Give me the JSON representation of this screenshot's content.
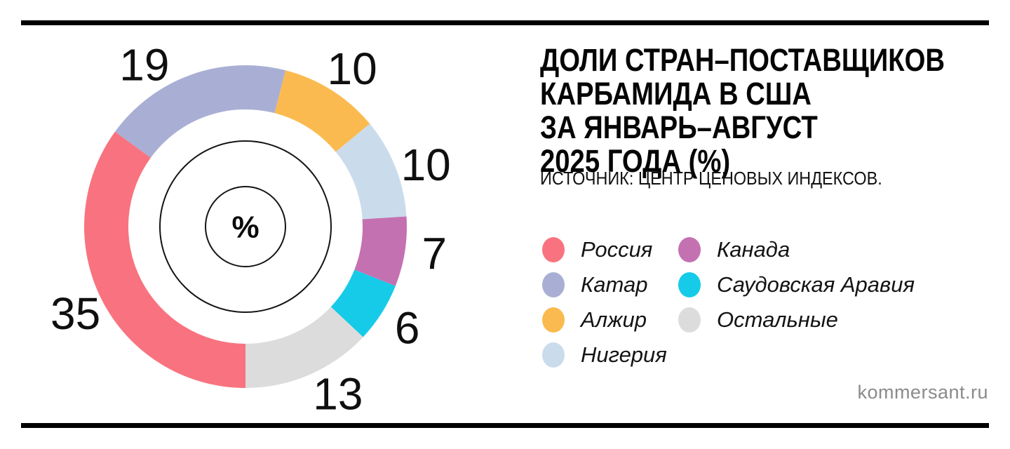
{
  "page": {
    "watermark": "kommersant.ru",
    "watermark_color": "#8b8b8b",
    "rule_color": "#000000",
    "background": "#ffffff"
  },
  "header": {
    "title": "ДОЛИ СТРАН–ПОСТАВЩИКОВ\nКАРБАМИДА В США\nЗА ЯНВАРЬ–АВГУСТ\n2025 ГОДА (%)",
    "source": "ИСТОЧНИК: ЦЕНТР ЦЕНОВЫХ ИНДЕКСОВ."
  },
  "chart_data": {
    "type": "pie",
    "variant": "donut",
    "title": "ДОЛИ СТРАН–ПОСТАВЩИКОВ КАРБАМИДА В США ЗА ЯНВАРЬ–АВГУСТ 2025 ГОДА (%)",
    "unit": "%",
    "center_label": "%",
    "start_angle_deg": -54,
    "clockwise": true,
    "segments": [
      {
        "label": "Катар",
        "value": 19,
        "color": "#A9AFD4",
        "label_angle": -32
      },
      {
        "label": "Алжир",
        "value": 10,
        "color": "#FBBA50",
        "label_angle": 34
      },
      {
        "label": "Нигерия",
        "value": 10,
        "color": "#CADCEC",
        "label_angle": 71
      },
      {
        "label": "Канада",
        "value": 7,
        "color": "#C471B2",
        "label_angle": 98
      },
      {
        "label": "Саудовская Аравия",
        "value": 6,
        "color": "#16CBE8",
        "label_angle": 122
      },
      {
        "label": "Остальные",
        "value": 13,
        "color": "#DCDCDC",
        "label_angle": 151
      },
      {
        "label": "Россия",
        "value": 35,
        "color": "#F8737F",
        "label_angle": 243
      }
    ],
    "legend_position": "right",
    "legend_columns": [
      [
        "Россия",
        "Катар",
        "Алжир",
        "Нигерия"
      ],
      [
        "Канада",
        "Саудовская Аравия",
        "Остальные"
      ]
    ]
  }
}
